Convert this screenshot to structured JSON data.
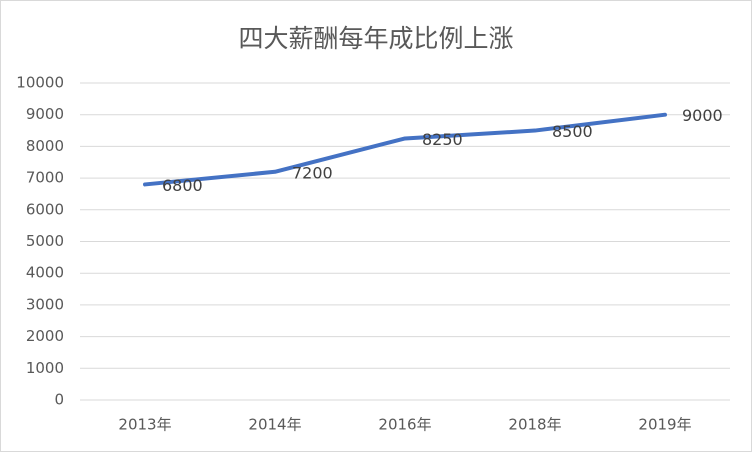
{
  "chart_data": {
    "type": "line",
    "title": "四大薪酬每年成比例上涨",
    "categories": [
      "2013年",
      "2014年",
      "2016年",
      "2018年",
      "2019年"
    ],
    "values": [
      6800,
      7200,
      8250,
      8500,
      9000
    ],
    "color": "#4472c4",
    "ylim": [
      0,
      10000
    ],
    "yticks": [
      0,
      1000,
      2000,
      3000,
      4000,
      5000,
      6000,
      7000,
      8000,
      9000,
      10000
    ],
    "grid": true
  }
}
